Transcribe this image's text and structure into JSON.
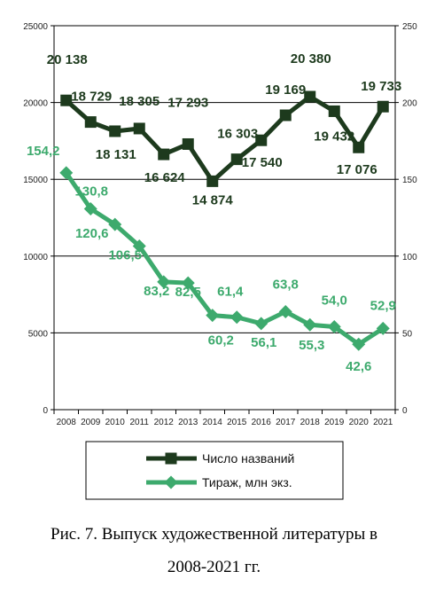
{
  "chart_data": {
    "type": "line",
    "title": "",
    "x": [
      "2008",
      "2009",
      "2010",
      "2011",
      "2012",
      "2013",
      "2014",
      "2015",
      "2016",
      "2017",
      "2018",
      "2019",
      "2020",
      "2021"
    ],
    "y_left": {
      "ylim": [
        0,
        25000
      ],
      "ticks": [
        "0",
        "5000",
        "10000",
        "15000",
        "20000",
        "25000"
      ]
    },
    "y_right": {
      "ylim": [
        0,
        250
      ],
      "ticks": [
        "0",
        "50",
        "100",
        "150",
        "200",
        "250"
      ]
    },
    "grid": "horizontal",
    "legend_position": "bottom",
    "series": [
      {
        "name": "Число названий",
        "axis": "left",
        "marker": "square",
        "color": "#1d3a1d",
        "values": [
          20138,
          18729,
          18131,
          18305,
          16624,
          17293,
          14874,
          16303,
          17540,
          19169,
          20380,
          19432,
          17076,
          19733
        ],
        "labels": [
          "20 138",
          "18 729",
          "18 131",
          "18 305",
          "16 624",
          "17 293",
          "14 874",
          "16 303",
          "17 540",
          "19 169",
          "20 380",
          "19 432",
          "17 076",
          "19 733"
        ]
      },
      {
        "name": "Тираж, млн экз.",
        "axis": "right",
        "marker": "diamond",
        "color": "#3daa6d",
        "values": [
          154.2,
          130.8,
          120.6,
          106.5,
          83.2,
          82.5,
          61.4,
          60.2,
          56.1,
          63.8,
          55.3,
          54.0,
          42.6,
          52.9
        ],
        "labels": [
          "154,2",
          "130,8",
          "120,6",
          "106,5",
          "83,2",
          "82,5",
          "61,4",
          "60,2",
          "56,1",
          "63,8",
          "55,3",
          "54,0",
          "42,6",
          "52,9"
        ]
      }
    ]
  },
  "caption": {
    "line1": "Рис.  7. Выпуск художественной литературы в",
    "line2": "2008-2021 гг."
  }
}
